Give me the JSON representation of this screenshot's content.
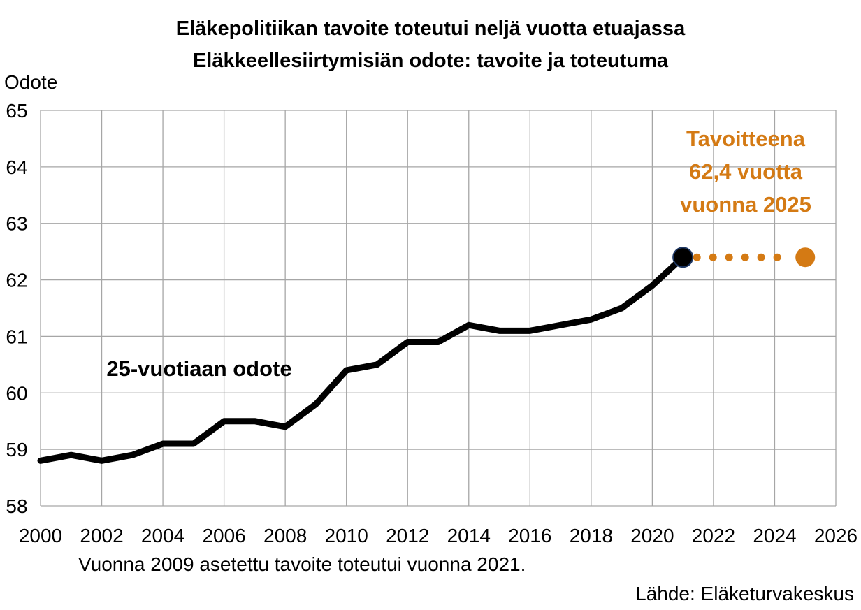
{
  "chart_data": {
    "type": "line",
    "title": "Eläkepolitiikan tavoite toteutui neljä vuotta etuajassa",
    "subtitle": "Eläkkeellesiirtymisiän odote: tavoite ja toteutuma",
    "ylabel": "Odote",
    "xlabel": "",
    "xlim": [
      2000,
      2026
    ],
    "ylim": [
      58,
      65
    ],
    "x_ticks": [
      "2000",
      "2002",
      "2004",
      "2006",
      "2008",
      "2010",
      "2012",
      "2014",
      "2016",
      "2018",
      "2020",
      "2022",
      "2024",
      "2026"
    ],
    "y_ticks": [
      "58",
      "59",
      "60",
      "61",
      "62",
      "63",
      "64",
      "65"
    ],
    "grid": true,
    "series": [
      {
        "name": "25-vuotiaan odote",
        "color": "#000000",
        "x": [
          2000,
          2001,
          2002,
          2003,
          2004,
          2005,
          2006,
          2007,
          2008,
          2009,
          2010,
          2011,
          2012,
          2013,
          2014,
          2015,
          2016,
          2017,
          2018,
          2019,
          2020,
          2021
        ],
        "values": [
          58.8,
          58.9,
          58.8,
          58.9,
          59.1,
          59.1,
          59.5,
          59.5,
          59.4,
          59.8,
          60.4,
          60.5,
          60.9,
          60.9,
          61.2,
          61.1,
          61.1,
          61.2,
          61.3,
          61.5,
          61.9,
          62.4
        ]
      },
      {
        "name": "",
        "color": "#D47A14",
        "style": "dotted",
        "x": [
          2021,
          2025
        ],
        "values": [
          62.4,
          62.4
        ]
      }
    ],
    "annotations": {
      "target_lines": [
        "Tavoitteena",
        "62,4 vuotta",
        "vuonna 2025"
      ]
    }
  },
  "footnote": "Vuonna 2009 asetettu tavoite toteutui vuonna 2021.",
  "source": "Lähde: Eläketurvakeskus",
  "colors": {
    "line": "#000000",
    "target": "#D47A14",
    "grid": "#A6A6A6",
    "end_marker_stroke": "#1F3864"
  }
}
